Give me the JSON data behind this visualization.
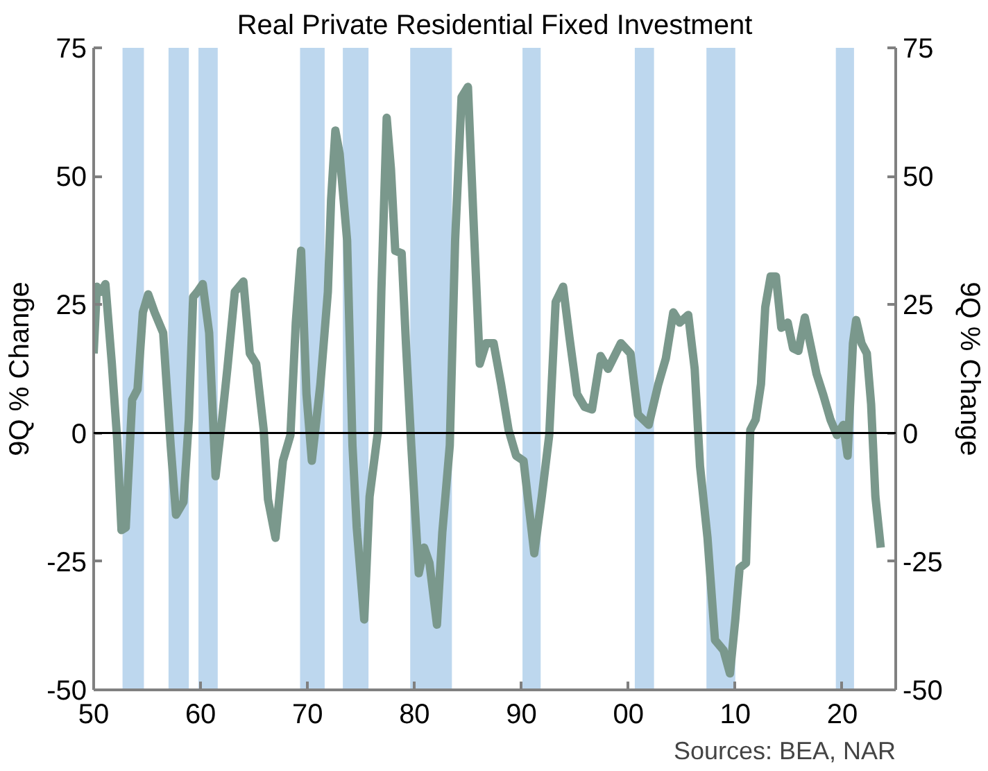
{
  "chart_data": {
    "type": "line",
    "title": "Real Private Residential Fixed Investment",
    "ylabel": "9Q % Change",
    "y2label": "9Q % Change",
    "x": [
      1950.0,
      1950.3,
      1950.7,
      1951.1,
      1951.7,
      1952.2,
      1952.6,
      1953.0,
      1953.6,
      1954.1,
      1954.6,
      1955.1,
      1955.7,
      1956.5,
      1957.2,
      1957.7,
      1958.4,
      1958.9,
      1959.3,
      1959.7,
      1960.2,
      1960.8,
      1961.4,
      1962.0,
      1962.5,
      1963.2,
      1964.0,
      1964.6,
      1965.2,
      1965.9,
      1966.3,
      1967.0,
      1967.7,
      1968.4,
      1968.9,
      1969.4,
      1969.9,
      1970.4,
      1971.2,
      1971.9,
      1972.2,
      1972.6,
      1973.0,
      1973.7,
      1974.2,
      1974.6,
      1975.3,
      1975.8,
      1976.6,
      1976.9,
      1977.4,
      1977.8,
      1978.2,
      1978.8,
      1979.2,
      1979.7,
      1980.4,
      1980.9,
      1981.4,
      1982.1,
      1982.6,
      1983.3,
      1983.8,
      1984.4,
      1985.0,
      1985.6,
      1986.1,
      1986.7,
      1987.4,
      1988.1,
      1988.8,
      1989.5,
      1990.2,
      1991.2,
      1991.9,
      1992.6,
      1993.2,
      1993.9,
      1994.5,
      1995.2,
      1995.9,
      1996.6,
      1997.4,
      1998.1,
      1999.3,
      2000.2,
      2000.9,
      2001.9,
      2002.8,
      2003.5,
      2004.2,
      2004.8,
      2005.6,
      2006.2,
      2006.7,
      2007.4,
      2008.1,
      2008.9,
      2009.5,
      2010.0,
      2010.4,
      2011.0,
      2011.4,
      2011.9,
      2012.4,
      2012.8,
      2013.3,
      2013.8,
      2014.3,
      2014.9,
      2015.4,
      2015.9,
      2016.5,
      2017.0,
      2017.6,
      2018.2,
      2018.9,
      2019.5,
      2020.1,
      2020.5,
      2021.0,
      2021.3,
      2021.8,
      2022.3,
      2022.7,
      2023.1,
      2023.6
    ],
    "series": [
      {
        "color": "#7a988c",
        "values": [
          15.5,
          28.5,
          27.5,
          29,
          13.5,
          -1.3,
          -18.9,
          -18.4,
          6.5,
          8.5,
          23.5,
          27,
          23.5,
          19.5,
          -2.4,
          -15.9,
          -13.4,
          2.6,
          26.5,
          27.5,
          29,
          19.5,
          -8.4,
          2.6,
          12.5,
          27.5,
          29.5,
          15.5,
          13.5,
          0.6,
          -12.9,
          -20.4,
          -5.4,
          -0.4,
          21.5,
          35.5,
          7.6,
          -5.4,
          9.5,
          27.5,
          45.4,
          58.9,
          54.4,
          37.5,
          -2.4,
          -18.4,
          -36.3,
          -12.4,
          0.6,
          27.5,
          61.4,
          51.4,
          35.5,
          35,
          17.5,
          -2.4,
          -27.3,
          -22.3,
          -25.3,
          -37.3,
          -19.4,
          -2.4,
          37.5,
          65.4,
          67.4,
          37.5,
          13.5,
          17.5,
          17.5,
          9.5,
          0.6,
          -4.4,
          -5.4,
          -23.4,
          -12.4,
          -0.4,
          25.5,
          28.5,
          18.5,
          7.6,
          5.1,
          4.6,
          15,
          12.5,
          17.5,
          15.5,
          3.6,
          1.6,
          9.5,
          14.5,
          23.5,
          21.5,
          23,
          12.5,
          -6.4,
          -20.4,
          -40.3,
          -42.3,
          -46.8,
          -36.3,
          -26.3,
          -25.3,
          0.6,
          2.6,
          9.5,
          24.5,
          30.5,
          30.5,
          20.5,
          21.5,
          16.5,
          16,
          22.5,
          17.5,
          11.5,
          7.6,
          2.6,
          -0.4,
          1.6,
          -4.4,
          17.5,
          22,
          17.5,
          15.5,
          5.6,
          -12.4,
          -22.3
        ]
      }
    ],
    "xlim": [
      1950,
      2025
    ],
    "xticks": [
      {
        "value": 1950,
        "label": "50"
      },
      {
        "value": 1960,
        "label": "60"
      },
      {
        "value": 1970,
        "label": "70"
      },
      {
        "value": 1980,
        "label": "80"
      },
      {
        "value": 1990,
        "label": "90"
      },
      {
        "value": 2000,
        "label": "00"
      },
      {
        "value": 2010,
        "label": "10"
      },
      {
        "value": 2020,
        "label": "20"
      }
    ],
    "ylim": [
      -50,
      75
    ],
    "yticks": [
      -50,
      -25,
      0,
      25,
      50,
      75
    ],
    "y2lim": [
      -50,
      75
    ],
    "y2ticks": [
      -50,
      -25,
      0,
      25,
      50,
      75
    ],
    "ref_lines": [
      {
        "axis": "y",
        "value": 0,
        "color": "#000000"
      }
    ],
    "bands": [
      {
        "axis": "x",
        "from": 1952.7,
        "to": 1954.7,
        "color": "#bdd7ee"
      },
      {
        "axis": "x",
        "from": 1957.0,
        "to": 1958.9,
        "color": "#bdd7ee"
      },
      {
        "axis": "x",
        "from": 1959.8,
        "to": 1961.6,
        "color": "#bdd7ee"
      },
      {
        "axis": "x",
        "from": 1969.3,
        "to": 1971.6,
        "color": "#bdd7ee"
      },
      {
        "axis": "x",
        "from": 1973.3,
        "to": 1975.7,
        "color": "#bdd7ee"
      },
      {
        "axis": "x",
        "from": 1979.6,
        "to": 1983.5,
        "color": "#bdd7ee"
      },
      {
        "axis": "x",
        "from": 1990.1,
        "to": 1991.8,
        "color": "#bdd7ee"
      },
      {
        "axis": "x",
        "from": 2000.6,
        "to": 2002.4,
        "color": "#bdd7ee"
      },
      {
        "axis": "x",
        "from": 2007.3,
        "to": 2010.0,
        "color": "#bdd7ee"
      },
      {
        "axis": "x",
        "from": 2019.4,
        "to": 2021.1,
        "color": "#bdd7ee"
      }
    ],
    "annotations": [
      "Sources: BEA, NAR"
    ],
    "grid": false
  }
}
